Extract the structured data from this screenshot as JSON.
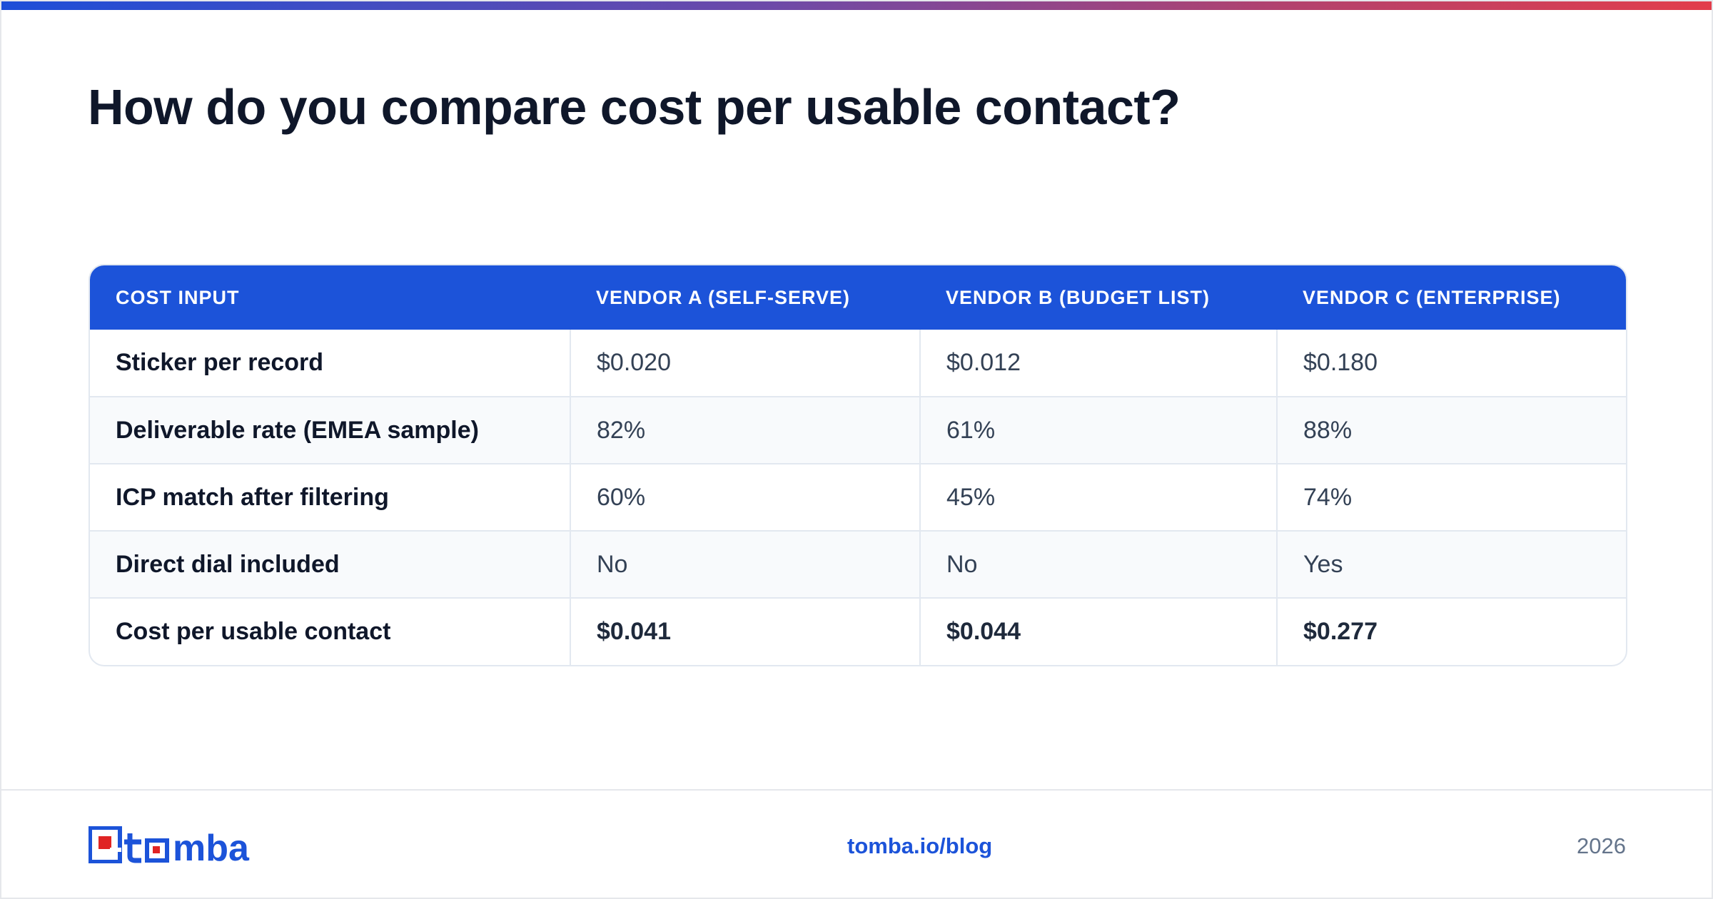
{
  "title": "How do you compare cost per usable contact?",
  "table": {
    "headers": [
      "COST INPUT",
      "VENDOR A (SELF-SERVE)",
      "VENDOR B (BUDGET LIST)",
      "VENDOR C (ENTERPRISE)"
    ],
    "rows": [
      [
        "Sticker per record",
        "$0.020",
        "$0.012",
        "$0.180"
      ],
      [
        "Deliverable rate (EMEA sample)",
        "82%",
        "61%",
        "88%"
      ],
      [
        "ICP match after filtering",
        "60%",
        "45%",
        "74%"
      ],
      [
        "Direct dial included",
        "No",
        "No",
        "Yes"
      ],
      [
        "Cost per usable contact",
        "$0.041",
        "$0.044",
        "$0.277"
      ]
    ]
  },
  "footer": {
    "logo_text": "tomba",
    "url": "tomba.io/blog",
    "year": "2026"
  },
  "colors": {
    "brand_blue": "#1c53d9",
    "logo_red": "#e02424",
    "accent_gradient": [
      "#1d4ed8",
      "#6d4aa8",
      "#b2426e",
      "#e23d4b"
    ]
  }
}
